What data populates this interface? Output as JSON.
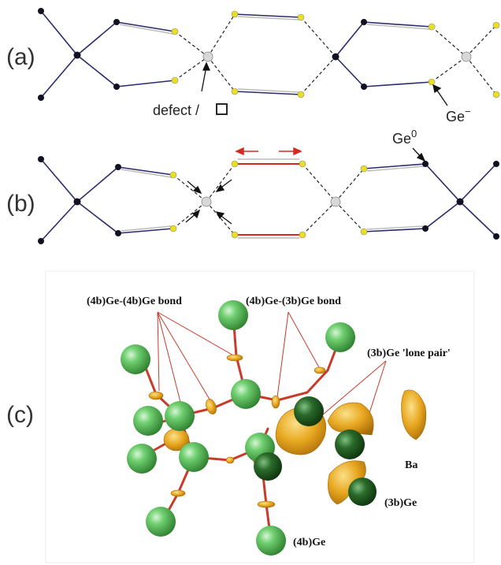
{
  "panels": {
    "a": {
      "label": "(a)",
      "annotations": {
        "defect": "defect /",
        "ge_minus_base": "Ge",
        "ge_minus_sup": "−"
      }
    },
    "b": {
      "label": "(b)",
      "annotations": {
        "ge0_base": "Ge",
        "ge0_sup": "0"
      }
    },
    "c": {
      "label": "(c)",
      "annotations": {
        "bond_4b4b": "(4b)Ge-(4b)Ge bond",
        "bond_4b3b": "(4b)Ge-(3b)Ge bond",
        "lone_pair": "(3b)Ge 'lone pair'",
        "ba": "Ba",
        "ge3b": "(3b)Ge",
        "ge4b": "(4b)Ge"
      }
    }
  },
  "colors": {
    "ge_atom_dark": "#111122",
    "ge_atom_yellow": "#e8e020",
    "defect_atom": "#d8d8d8",
    "bond_navy": "#2a2a6e",
    "bond_red": "#d42a1e",
    "lobe_orange": "#e8a020",
    "ge_green": "#5cc45c",
    "ge_dark_green": "#1e5a1e"
  }
}
